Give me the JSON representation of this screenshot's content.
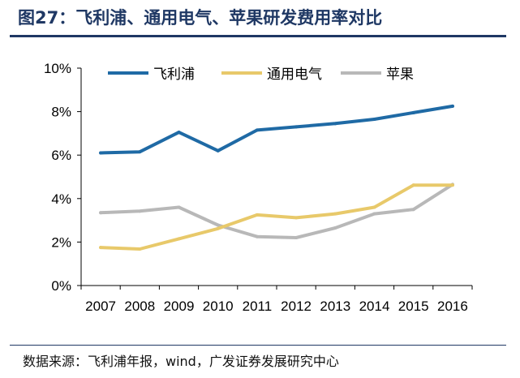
{
  "header": {
    "title": "图27：飞利浦、通用电气、苹果研发费用率对比"
  },
  "footer": {
    "source": "数据来源：飞利浦年报，wind，广发证券发展研究中心"
  },
  "chart_data": {
    "type": "line",
    "title": "飞利浦、通用电气、苹果研发费用率对比",
    "xlabel": "",
    "ylabel": "",
    "categories": [
      "2007",
      "2008",
      "2009",
      "2010",
      "2011",
      "2012",
      "2013",
      "2014",
      "2015",
      "2016"
    ],
    "ylim": [
      0,
      10
    ],
    "yticks": [
      0,
      2,
      4,
      6,
      8,
      10
    ],
    "ytick_labels": [
      "0%",
      "2%",
      "4%",
      "6%",
      "8%",
      "10%"
    ],
    "grid": false,
    "legend_position": "top",
    "series": [
      {
        "name": "飞利浦",
        "color": "#1f6aa5",
        "values": [
          6.1,
          6.15,
          7.05,
          6.2,
          7.15,
          7.3,
          7.45,
          7.65,
          7.95,
          8.25
        ]
      },
      {
        "name": "通用电气",
        "color": "#e8c96a",
        "values": [
          1.75,
          1.68,
          2.15,
          2.62,
          3.25,
          3.12,
          3.3,
          3.6,
          4.62,
          4.62
        ]
      },
      {
        "name": "苹果",
        "color": "#b8b8b8",
        "values": [
          3.35,
          3.42,
          3.6,
          2.78,
          2.25,
          2.2,
          2.65,
          3.3,
          3.5,
          4.65
        ]
      }
    ]
  }
}
